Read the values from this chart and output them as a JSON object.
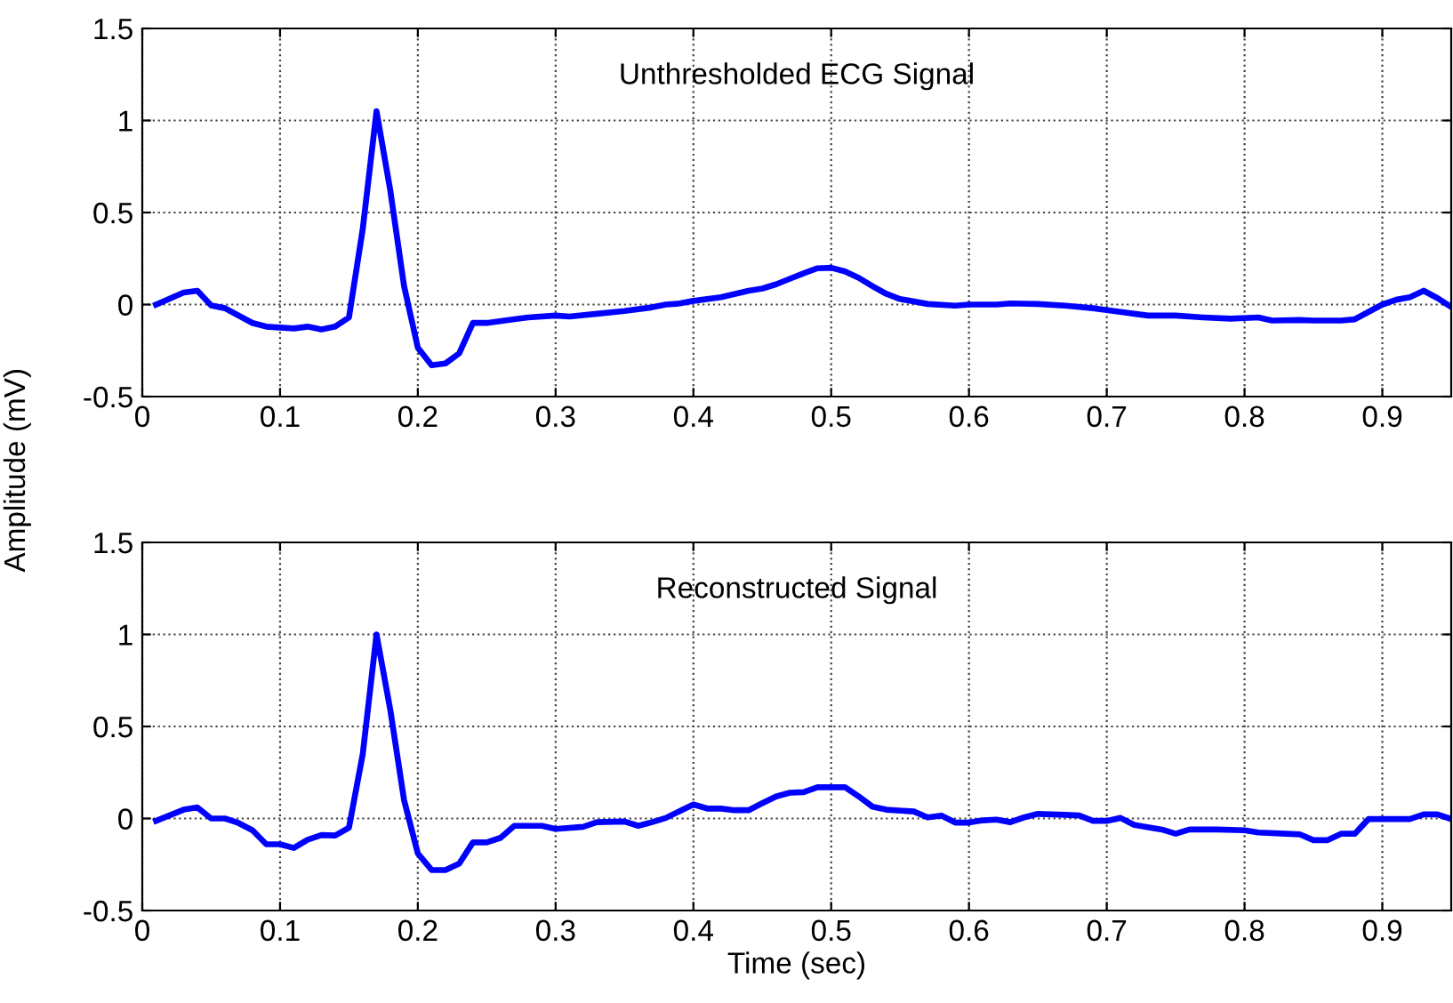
{
  "chart_data": [
    {
      "type": "line",
      "title": "Unthresholded ECG Signal",
      "ylabel": "Amplitude (mV)",
      "xlim": [
        0,
        0.95
      ],
      "ylim": [
        -0.5,
        1.5
      ],
      "xticks": [
        0,
        0.1,
        0.2,
        0.3,
        0.4,
        0.5,
        0.6,
        0.7,
        0.8,
        0.9
      ],
      "yticks": [
        -0.5,
        0,
        0.5,
        1,
        1.5
      ],
      "grid": true,
      "line_style": "solid",
      "marker": "none",
      "series": [
        {
          "color": "#0000ff",
          "x": [
            0.01,
            0.03,
            0.04,
            0.05,
            0.06,
            0.08,
            0.09,
            0.11,
            0.12,
            0.13,
            0.14,
            0.15,
            0.16,
            0.17,
            0.18,
            0.19,
            0.2,
            0.21,
            0.22,
            0.23,
            0.24,
            0.25,
            0.27,
            0.28,
            0.3,
            0.31,
            0.33,
            0.35,
            0.37,
            0.38,
            0.39,
            0.4,
            0.42,
            0.44,
            0.45,
            0.46,
            0.47,
            0.48,
            0.49,
            0.5,
            0.51,
            0.52,
            0.53,
            0.54,
            0.55,
            0.57,
            0.59,
            0.6,
            0.62,
            0.63,
            0.65,
            0.67,
            0.69,
            0.7,
            0.72,
            0.73,
            0.75,
            0.77,
            0.79,
            0.81,
            0.82,
            0.84,
            0.85,
            0.87,
            0.88,
            0.89,
            0.9,
            0.91,
            0.92,
            0.93,
            0.94,
            0.95
          ],
          "values": [
            0,
            0.065,
            0.075,
            -0.005,
            -0.02,
            -0.1,
            -0.12,
            -0.13,
            -0.12,
            -0.135,
            -0.12,
            -0.07,
            0.41,
            1.05,
            0.62,
            0.1,
            -0.235,
            -0.33,
            -0.32,
            -0.265,
            -0.1,
            -0.1,
            -0.08,
            -0.07,
            -0.06,
            -0.065,
            -0.05,
            -0.035,
            -0.015,
            0,
            0.006,
            0.02,
            0.04,
            0.075,
            0.087,
            0.11,
            0.14,
            0.17,
            0.197,
            0.2,
            0.18,
            0.145,
            0.1,
            0.058,
            0.03,
            0.003,
            -0.006,
            0,
            0,
            0.006,
            0.003,
            -0.006,
            -0.02,
            -0.03,
            -0.05,
            -0.06,
            -0.06,
            -0.07,
            -0.077,
            -0.07,
            -0.087,
            -0.084,
            -0.087,
            -0.087,
            -0.08,
            -0.04,
            0,
            0.026,
            0.04,
            0.075,
            0.035,
            -0.013
          ]
        }
      ]
    },
    {
      "type": "line",
      "title": "Reconstructed Signal",
      "xlabel": "Time (sec)",
      "xlim": [
        0,
        0.95
      ],
      "ylim": [
        -0.5,
        1.5
      ],
      "xticks": [
        0,
        0.1,
        0.2,
        0.3,
        0.4,
        0.5,
        0.6,
        0.7,
        0.8,
        0.9
      ],
      "yticks": [
        -0.5,
        0,
        0.5,
        1,
        1.5
      ],
      "grid": true,
      "line_style": "solid",
      "marker": "none",
      "series": [
        {
          "color": "#0000ff",
          "x": [
            0.01,
            0.03,
            0.04,
            0.05,
            0.06,
            0.07,
            0.08,
            0.09,
            0.1,
            0.11,
            0.12,
            0.13,
            0.14,
            0.15,
            0.16,
            0.17,
            0.18,
            0.19,
            0.2,
            0.21,
            0.22,
            0.23,
            0.24,
            0.25,
            0.26,
            0.27,
            0.29,
            0.3,
            0.32,
            0.33,
            0.35,
            0.36,
            0.37,
            0.38,
            0.39,
            0.4,
            0.41,
            0.42,
            0.43,
            0.44,
            0.45,
            0.46,
            0.47,
            0.48,
            0.49,
            0.51,
            0.52,
            0.53,
            0.54,
            0.56,
            0.57,
            0.58,
            0.59,
            0.6,
            0.61,
            0.62,
            0.63,
            0.64,
            0.65,
            0.67,
            0.68,
            0.69,
            0.7,
            0.71,
            0.72,
            0.74,
            0.75,
            0.76,
            0.78,
            0.8,
            0.81,
            0.83,
            0.84,
            0.85,
            0.86,
            0.87,
            0.88,
            0.89,
            0.91,
            0.92,
            0.93,
            0.94,
            0.95
          ],
          "values": [
            -0.013,
            0.048,
            0.06,
            0,
            0,
            -0.025,
            -0.064,
            -0.14,
            -0.14,
            -0.16,
            -0.115,
            -0.09,
            -0.092,
            -0.05,
            0.35,
            1.0,
            0.59,
            0.1,
            -0.19,
            -0.28,
            -0.28,
            -0.245,
            -0.13,
            -0.13,
            -0.105,
            -0.04,
            -0.04,
            -0.057,
            -0.045,
            -0.02,
            -0.016,
            -0.04,
            -0.02,
            0.003,
            0.04,
            0.076,
            0.054,
            0.054,
            0.045,
            0.045,
            0.083,
            0.12,
            0.14,
            0.143,
            0.17,
            0.17,
            0.12,
            0.064,
            0.048,
            0.038,
            0.006,
            0.016,
            -0.022,
            -0.022,
            -0.01,
            -0.006,
            -0.02,
            0.006,
            0.025,
            0.02,
            0.016,
            -0.013,
            -0.013,
            0.003,
            -0.035,
            -0.06,
            -0.083,
            -0.06,
            -0.06,
            -0.064,
            -0.076,
            -0.083,
            -0.086,
            -0.118,
            -0.118,
            -0.083,
            -0.083,
            -0.003,
            -0.003,
            -0.003,
            0.022,
            0.022,
            -0.003
          ]
        }
      ]
    }
  ]
}
